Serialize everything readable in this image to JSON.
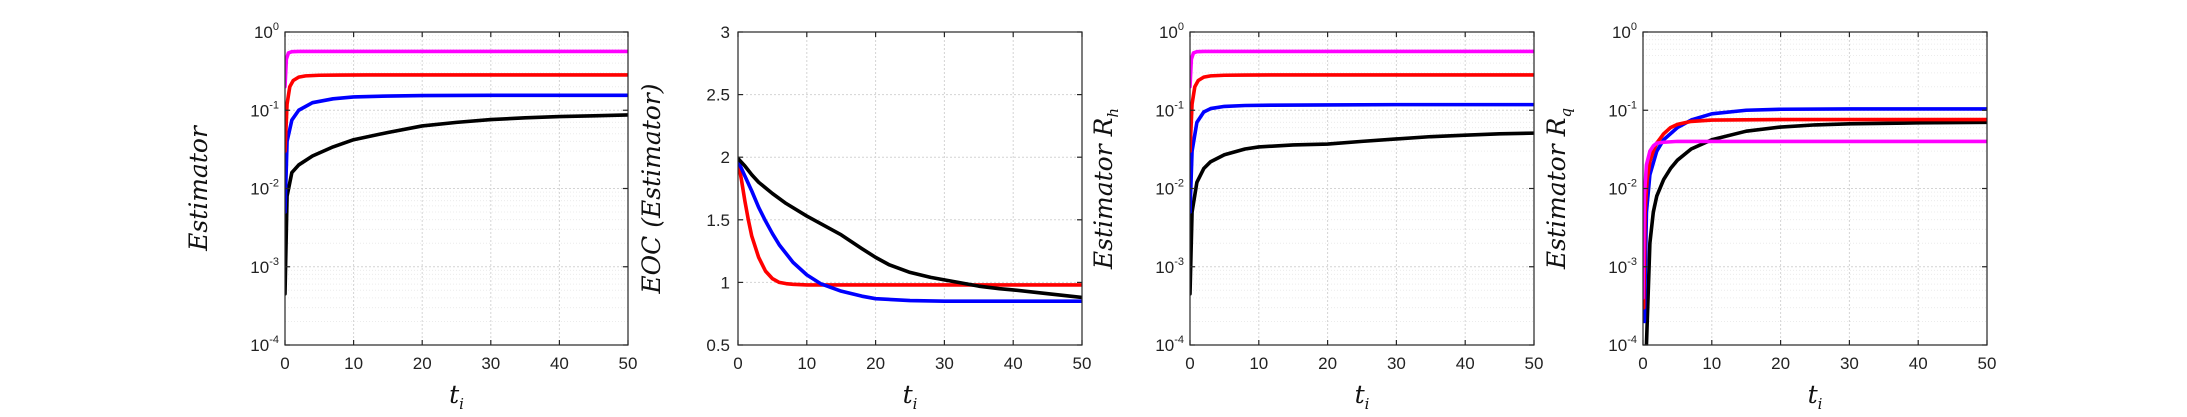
{
  "chart_data": [
    {
      "type": "line",
      "scale": "log",
      "title": "",
      "xlabel": "t",
      "xlabel_sub": "i",
      "ylabel": "Estimator",
      "ylabel_sub": "",
      "xlim": [
        0,
        50
      ],
      "ylim": [
        0.0001,
        1
      ],
      "xticks": [
        "0",
        "10",
        "20",
        "30",
        "40",
        "50"
      ],
      "yticks": [
        {
          "base": "10",
          "exp": "-4"
        },
        {
          "base": "10",
          "exp": "-3"
        },
        {
          "base": "10",
          "exp": "-2"
        },
        {
          "base": "10",
          "exp": "-1"
        },
        {
          "base": "10",
          "exp": "0"
        }
      ],
      "grid": true,
      "series": [
        {
          "color": "#000000",
          "x": [
            0,
            0.3,
            1,
            2,
            4,
            7,
            10,
            15,
            20,
            25,
            30,
            35,
            40,
            45,
            50
          ],
          "y": [
            0.00045,
            0.008,
            0.016,
            0.02,
            0.026,
            0.034,
            0.042,
            0.052,
            0.063,
            0.07,
            0.076,
            0.08,
            0.083,
            0.085,
            0.087
          ]
        },
        {
          "color": "#0000ff",
          "x": [
            0,
            0.3,
            1,
            2,
            4,
            7,
            10,
            15,
            20,
            30,
            40,
            50
          ],
          "y": [
            0.005,
            0.04,
            0.075,
            0.1,
            0.125,
            0.14,
            0.148,
            0.152,
            0.154,
            0.155,
            0.155,
            0.155
          ]
        },
        {
          "color": "#ff0000",
          "x": [
            0,
            0.3,
            0.7,
            1.2,
            2,
            3,
            5,
            8,
            12,
            20,
            30,
            40,
            50
          ],
          "y": [
            0.03,
            0.12,
            0.2,
            0.24,
            0.265,
            0.275,
            0.28,
            0.282,
            0.283,
            0.283,
            0.283,
            0.283,
            0.283
          ]
        },
        {
          "color": "#ff00ff",
          "x": [
            0,
            0.2,
            0.5,
            1,
            2,
            5,
            10,
            20,
            30,
            40,
            50
          ],
          "y": [
            0.2,
            0.45,
            0.54,
            0.56,
            0.565,
            0.565,
            0.565,
            0.565,
            0.565,
            0.565,
            0.565
          ]
        }
      ]
    },
    {
      "type": "line",
      "scale": "linear",
      "title": "",
      "xlabel": "t",
      "xlabel_sub": "i",
      "ylabel": "EOC (Estimator)",
      "ylabel_sub": "",
      "xlim": [
        0,
        50
      ],
      "ylim": [
        0.5,
        3
      ],
      "xticks": [
        "0",
        "10",
        "20",
        "30",
        "40",
        "50"
      ],
      "yticks": [
        "0.5",
        "1",
        "1.5",
        "2",
        "2.5",
        "3"
      ],
      "grid": true,
      "series": [
        {
          "color": "#ff0000",
          "x": [
            0,
            0.5,
            1,
            1.5,
            2,
            3,
            4,
            5,
            6,
            7,
            8,
            10,
            15,
            20,
            30,
            40,
            50
          ],
          "y": [
            1.97,
            1.82,
            1.65,
            1.5,
            1.37,
            1.2,
            1.09,
            1.03,
            1.0,
            0.99,
            0.985,
            0.98,
            0.98,
            0.98,
            0.98,
            0.98,
            0.98
          ]
        },
        {
          "color": "#0000ff",
          "x": [
            0,
            1,
            2,
            3,
            4,
            5,
            6,
            7,
            8,
            10,
            12,
            15,
            18,
            20,
            25,
            30,
            35,
            40,
            45,
            50
          ],
          "y": [
            1.97,
            1.85,
            1.73,
            1.6,
            1.49,
            1.39,
            1.3,
            1.23,
            1.16,
            1.06,
            0.99,
            0.93,
            0.89,
            0.87,
            0.855,
            0.85,
            0.85,
            0.85,
            0.85,
            0.85
          ]
        },
        {
          "color": "#000000",
          "x": [
            0,
            1,
            2,
            3,
            5,
            7,
            10,
            12,
            15,
            18,
            20,
            22,
            25,
            28,
            30,
            33,
            35,
            38,
            40,
            45,
            50
          ],
          "y": [
            1.99,
            1.93,
            1.86,
            1.8,
            1.71,
            1.63,
            1.53,
            1.47,
            1.38,
            1.27,
            1.2,
            1.14,
            1.08,
            1.04,
            1.02,
            0.99,
            0.97,
            0.95,
            0.94,
            0.91,
            0.88
          ]
        }
      ]
    },
    {
      "type": "line",
      "scale": "log",
      "title": "",
      "xlabel": "t",
      "xlabel_sub": "i",
      "ylabel": "Estimator R",
      "ylabel_sub": "h",
      "xlim": [
        0,
        50
      ],
      "ylim": [
        0.0001,
        1
      ],
      "xticks": [
        "0",
        "10",
        "20",
        "30",
        "40",
        "50"
      ],
      "yticks": [
        {
          "base": "10",
          "exp": "-4"
        },
        {
          "base": "10",
          "exp": "-3"
        },
        {
          "base": "10",
          "exp": "-2"
        },
        {
          "base": "10",
          "exp": "-1"
        },
        {
          "base": "10",
          "exp": "0"
        }
      ],
      "grid": true,
      "series": [
        {
          "color": "#000000",
          "x": [
            0,
            0.3,
            1,
            2,
            3,
            5,
            8,
            10,
            15,
            20,
            25,
            30,
            35,
            40,
            45,
            50
          ],
          "y": [
            0.00045,
            0.005,
            0.012,
            0.018,
            0.022,
            0.027,
            0.032,
            0.034,
            0.036,
            0.037,
            0.04,
            0.043,
            0.046,
            0.048,
            0.05,
            0.051
          ]
        },
        {
          "color": "#0000ff",
          "x": [
            0,
            0.3,
            1,
            2,
            3,
            5,
            8,
            12,
            20,
            30,
            40,
            50
          ],
          "y": [
            0.005,
            0.03,
            0.07,
            0.095,
            0.105,
            0.112,
            0.115,
            0.116,
            0.117,
            0.118,
            0.118,
            0.118
          ]
        },
        {
          "color": "#ff0000",
          "x": [
            0,
            0.3,
            0.7,
            1.2,
            2,
            3,
            5,
            8,
            12,
            20,
            30,
            40,
            50
          ],
          "y": [
            0.03,
            0.12,
            0.2,
            0.24,
            0.265,
            0.275,
            0.28,
            0.282,
            0.283,
            0.283,
            0.283,
            0.283,
            0.283
          ]
        },
        {
          "color": "#ff00ff",
          "x": [
            0,
            0.2,
            0.5,
            1,
            2,
            5,
            10,
            20,
            30,
            40,
            50
          ],
          "y": [
            0.2,
            0.45,
            0.54,
            0.56,
            0.565,
            0.565,
            0.565,
            0.565,
            0.565,
            0.565,
            0.565
          ]
        }
      ]
    },
    {
      "type": "line",
      "scale": "log",
      "title": "",
      "xlabel": "t",
      "xlabel_sub": "i",
      "ylabel": "Estimator R",
      "ylabel_sub": "q",
      "xlim": [
        0,
        50
      ],
      "ylim": [
        0.0001,
        1
      ],
      "xticks": [
        "0",
        "10",
        "20",
        "30",
        "40",
        "50"
      ],
      "yticks": [
        {
          "base": "10",
          "exp": "-4"
        },
        {
          "base": "10",
          "exp": "-3"
        },
        {
          "base": "10",
          "exp": "-2"
        },
        {
          "base": "10",
          "exp": "-1"
        },
        {
          "base": "10",
          "exp": "0"
        }
      ],
      "grid": true,
      "series": [
        {
          "color": "#000000",
          "x": [
            0.5,
            1,
            1.5,
            2,
            3,
            4,
            5,
            7,
            10,
            15,
            20,
            25,
            30,
            40,
            50
          ],
          "y": [
            0.0001,
            0.002,
            0.005,
            0.008,
            0.013,
            0.018,
            0.023,
            0.032,
            0.042,
            0.054,
            0.061,
            0.065,
            0.067,
            0.069,
            0.07
          ]
        },
        {
          "color": "#0000ff",
          "x": [
            0.2,
            0.5,
            1,
            2,
            3,
            5,
            7,
            10,
            15,
            20,
            30,
            40,
            50
          ],
          "y": [
            0.0002,
            0.005,
            0.015,
            0.03,
            0.042,
            0.06,
            0.075,
            0.09,
            0.1,
            0.103,
            0.104,
            0.104,
            0.104
          ]
        },
        {
          "color": "#ff0000",
          "x": [
            0.1,
            0.3,
            0.6,
            1,
            1.5,
            2,
            3,
            4,
            5,
            7,
            10,
            20,
            30,
            40,
            50
          ],
          "y": [
            0.0003,
            0.005,
            0.013,
            0.022,
            0.03,
            0.038,
            0.05,
            0.06,
            0.066,
            0.072,
            0.075,
            0.076,
            0.076,
            0.076,
            0.076
          ]
        },
        {
          "color": "#ff00ff",
          "x": [
            0,
            0.2,
            0.5,
            1,
            1.5,
            2,
            3,
            5,
            10,
            20,
            30,
            40,
            50
          ],
          "y": [
            0.0004,
            0.008,
            0.02,
            0.03,
            0.035,
            0.038,
            0.039,
            0.04,
            0.04,
            0.04,
            0.04,
            0.04,
            0.04
          ]
        }
      ]
    }
  ]
}
